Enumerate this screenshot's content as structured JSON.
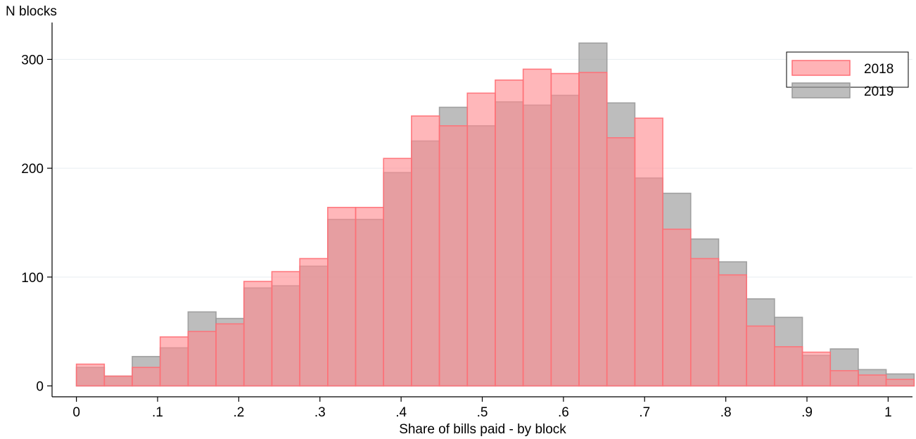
{
  "chart_data": {
    "type": "bar",
    "title": "",
    "ylabel": "N blocks",
    "xlabel": "Share of bills paid - by block",
    "bin_width": 0.0344,
    "x_bins_start": [
      0,
      0.0344,
      0.0688,
      0.1032,
      0.1376,
      0.172,
      0.2064,
      0.2408,
      0.2752,
      0.3096,
      0.344,
      0.3784,
      0.4128,
      0.4472,
      0.4816,
      0.516,
      0.5504,
      0.5848,
      0.6192,
      0.6536,
      0.688,
      0.7224,
      0.7568,
      0.7912,
      0.8256,
      0.86,
      0.8944,
      0.9288,
      0.9632,
      0.9976
    ],
    "xlim": [
      -0.03,
      1.03
    ],
    "ylim": [
      -10,
      330
    ],
    "x_ticks": [
      0,
      0.1,
      0.2,
      0.3,
      0.4,
      0.5,
      0.6,
      0.7,
      0.8,
      0.9,
      1
    ],
    "x_tick_labels": [
      "0",
      ".1",
      ".2",
      ".3",
      ".4",
      ".5",
      ".6",
      ".7",
      ".8",
      ".9",
      "1"
    ],
    "y_ticks": [
      0,
      100,
      200,
      300
    ],
    "y_tick_labels": [
      "0",
      "100",
      "200",
      "300"
    ],
    "grid": true,
    "legend_position": "top-right",
    "series": [
      {
        "name": "2018",
        "color": "#ff8a8f",
        "values": [
          20,
          9,
          17,
          45,
          50,
          57,
          96,
          105,
          117,
          164,
          164,
          209,
          248,
          239,
          269,
          281,
          291,
          287,
          288,
          228,
          246,
          144,
          117,
          102,
          55,
          36,
          31,
          14,
          10,
          6
        ]
      },
      {
        "name": "2019",
        "color": "#999999",
        "values": [
          17,
          9,
          27,
          35,
          68,
          62,
          90,
          92,
          110,
          153,
          153,
          196,
          225,
          256,
          239,
          261,
          258,
          267,
          315,
          260,
          191,
          177,
          135,
          114,
          80,
          63,
          28,
          34,
          15,
          11
        ]
      }
    ]
  }
}
